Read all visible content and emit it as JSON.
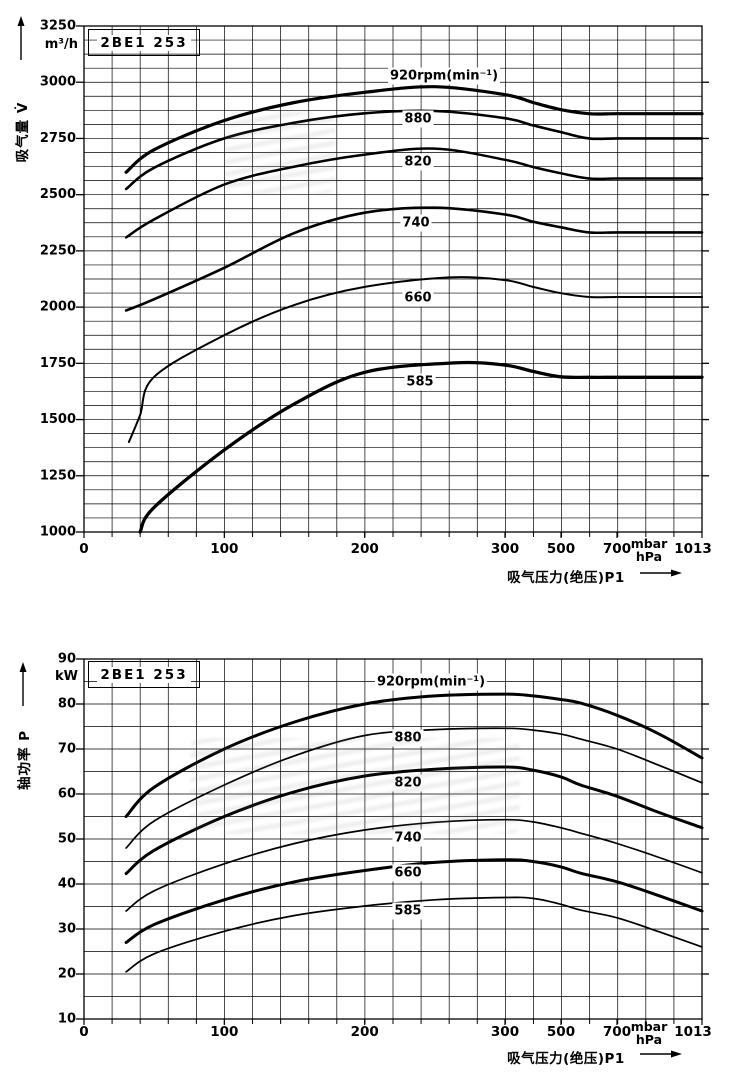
{
  "page": {
    "background": "#ffffff",
    "ink": "#000000"
  },
  "x_axis_shared": {
    "title": "吸气压力(绝压)P1",
    "tick_labels": [
      "0",
      "100",
      "200",
      "300",
      "500",
      "700",
      "1013"
    ],
    "unit_top": "mbar",
    "unit_bottom": "hPa"
  },
  "chart_data": [
    {
      "type": "line",
      "name": "suction-capacity-curves",
      "model_box": "2BE1 253",
      "ylabel": "吸气量 V̇",
      "y_unit": "m³/h",
      "xlabel": "吸气压力(绝压)P1",
      "x_units": [
        "mbar",
        "hPa"
      ],
      "ylim": [
        1000,
        3250
      ],
      "y_tick_step": 250,
      "x_ticks": [
        0,
        100,
        200,
        300,
        500,
        700,
        1013
      ],
      "x_scale": "linear 0-300 mbar, compressed 300-1013 mbar",
      "grid": "on",
      "series": [
        {
          "label": "920rpm(min⁻¹)",
          "rpm": 920,
          "points": [
            [
              30,
              2600
            ],
            [
              50,
              2700
            ],
            [
              100,
              2830
            ],
            [
              150,
              2910
            ],
            [
              200,
              2955
            ],
            [
              250,
              2980
            ],
            [
              300,
              2945
            ],
            [
              400,
              2910
            ],
            [
              500,
              2878
            ],
            [
              600,
              2860
            ],
            [
              700,
              2860
            ],
            [
              850,
              2860
            ],
            [
              1013,
              2860
            ]
          ]
        },
        {
          "label": "880",
          "rpm": 880,
          "points": [
            [
              30,
              2525
            ],
            [
              50,
              2620
            ],
            [
              100,
              2750
            ],
            [
              150,
              2820
            ],
            [
              200,
              2862
            ],
            [
              250,
              2872
            ],
            [
              300,
              2840
            ],
            [
              400,
              2808
            ],
            [
              500,
              2778
            ],
            [
              600,
              2750
            ],
            [
              700,
              2750
            ],
            [
              850,
              2750
            ],
            [
              1013,
              2750
            ]
          ]
        },
        {
          "label": "820",
          "rpm": 820,
          "points": [
            [
              30,
              2310
            ],
            [
              50,
              2390
            ],
            [
              100,
              2545
            ],
            [
              150,
              2625
            ],
            [
              200,
              2678
            ],
            [
              250,
              2705
            ],
            [
              300,
              2655
            ],
            [
              400,
              2623
            ],
            [
              500,
              2595
            ],
            [
              600,
              2572
            ],
            [
              700,
              2572
            ],
            [
              850,
              2572
            ],
            [
              1013,
              2572
            ]
          ]
        },
        {
          "label": "740",
          "rpm": 740,
          "points": [
            [
              30,
              1985
            ],
            [
              50,
              2035
            ],
            [
              100,
              2175
            ],
            [
              150,
              2330
            ],
            [
              200,
              2420
            ],
            [
              250,
              2442
            ],
            [
              300,
              2412
            ],
            [
              400,
              2380
            ],
            [
              500,
              2355
            ],
            [
              600,
              2332
            ],
            [
              700,
              2332
            ],
            [
              850,
              2332
            ],
            [
              1013,
              2332
            ]
          ]
        },
        {
          "label": "660",
          "rpm": 660,
          "points": [
            [
              32,
              1400
            ],
            [
              40,
              1520
            ],
            [
              50,
              1690
            ],
            [
              100,
              1875
            ],
            [
              150,
              2010
            ],
            [
              200,
              2090
            ],
            [
              260,
              2132
            ],
            [
              300,
              2120
            ],
            [
              400,
              2090
            ],
            [
              500,
              2062
            ],
            [
              600,
              2045
            ],
            [
              700,
              2045
            ],
            [
              850,
              2045
            ],
            [
              1013,
              2045
            ]
          ]
        },
        {
          "label": "585",
          "rpm": 585,
          "points": [
            [
              40,
              1000
            ],
            [
              50,
              1110
            ],
            [
              100,
              1365
            ],
            [
              150,
              1570
            ],
            [
              200,
              1710
            ],
            [
              264,
              1752
            ],
            [
              300,
              1742
            ],
            [
              400,
              1714
            ],
            [
              500,
              1690
            ],
            [
              600,
              1688
            ],
            [
              700,
              1688
            ],
            [
              850,
              1688
            ],
            [
              1013,
              1688
            ]
          ]
        }
      ]
    },
    {
      "type": "line",
      "name": "shaft-power-curves",
      "model_box": "2BE1 253",
      "ylabel": "轴功率 P",
      "y_unit": "kW",
      "xlabel": "吸气压力(绝压)P1",
      "x_units": [
        "mbar",
        "hPa"
      ],
      "ylim": [
        10,
        90
      ],
      "y_tick_step": 10,
      "y_minor_step": 5,
      "x_ticks": [
        0,
        100,
        200,
        300,
        500,
        700,
        1013
      ],
      "x_scale": "linear 0-300 mbar, compressed 300-1013 mbar",
      "grid": "on",
      "series": [
        {
          "label": "920rpm(min⁻¹)",
          "rpm": 920,
          "points": [
            [
              30,
              55
            ],
            [
              50,
              61.5
            ],
            [
              100,
              70
            ],
            [
              150,
              76
            ],
            [
              200,
              80
            ],
            [
              250,
              81.8
            ],
            [
              300,
              82.2
            ],
            [
              400,
              81.8
            ],
            [
              500,
              81
            ],
            [
              570,
              80.2
            ],
            [
              700,
              77.5
            ],
            [
              850,
              73.5
            ],
            [
              1013,
              68
            ]
          ]
        },
        {
          "label": "880",
          "rpm": 880,
          "points": [
            [
              30,
              48
            ],
            [
              50,
              54
            ],
            [
              100,
              62
            ],
            [
              150,
              68.5
            ],
            [
              200,
              73
            ],
            [
              250,
              74.3
            ],
            [
              300,
              74.6
            ],
            [
              400,
              74.2
            ],
            [
              500,
              73.3
            ],
            [
              570,
              72.2
            ],
            [
              700,
              70
            ],
            [
              850,
              66.5
            ],
            [
              1013,
              62.5
            ]
          ]
        },
        {
          "label": "820",
          "rpm": 820,
          "points": [
            [
              30,
              42.3
            ],
            [
              50,
              47.5
            ],
            [
              100,
              55
            ],
            [
              150,
              60.5
            ],
            [
              200,
              64
            ],
            [
              250,
              65.5
            ],
            [
              300,
              66
            ],
            [
              400,
              65.3
            ],
            [
              500,
              63.8
            ],
            [
              570,
              62
            ],
            [
              700,
              59.5
            ],
            [
              850,
              56
            ],
            [
              1013,
              52.5
            ]
          ]
        },
        {
          "label": "740",
          "rpm": 740,
          "points": [
            [
              30,
              34
            ],
            [
              50,
              38.5
            ],
            [
              100,
              44.5
            ],
            [
              150,
              49
            ],
            [
              200,
              52
            ],
            [
              250,
              53.7
            ],
            [
              300,
              54.3
            ],
            [
              400,
              53.8
            ],
            [
              500,
              52.5
            ],
            [
              570,
              51.3
            ],
            [
              700,
              49
            ],
            [
              850,
              46
            ],
            [
              1013,
              42.5
            ]
          ]
        },
        {
          "label": "660",
          "rpm": 660,
          "points": [
            [
              30,
              27
            ],
            [
              50,
              31
            ],
            [
              100,
              36.5
            ],
            [
              150,
              40.5
            ],
            [
              200,
              43
            ],
            [
              250,
              44.8
            ],
            [
              300,
              45.4
            ],
            [
              400,
              45
            ],
            [
              500,
              43.8
            ],
            [
              570,
              42.4
            ],
            [
              700,
              40.5
            ],
            [
              850,
              37.5
            ],
            [
              1013,
              34
            ]
          ]
        },
        {
          "label": "585",
          "rpm": 585,
          "points": [
            [
              30,
              20.5
            ],
            [
              50,
              24.5
            ],
            [
              100,
              29.5
            ],
            [
              150,
              33
            ],
            [
              200,
              35.1
            ],
            [
              250,
              36.5
            ],
            [
              300,
              37
            ],
            [
              400,
              36.8
            ],
            [
              500,
              35.5
            ],
            [
              570,
              34.2
            ],
            [
              700,
              32.5
            ],
            [
              850,
              29.5
            ],
            [
              1013,
              26
            ]
          ]
        }
      ]
    }
  ]
}
